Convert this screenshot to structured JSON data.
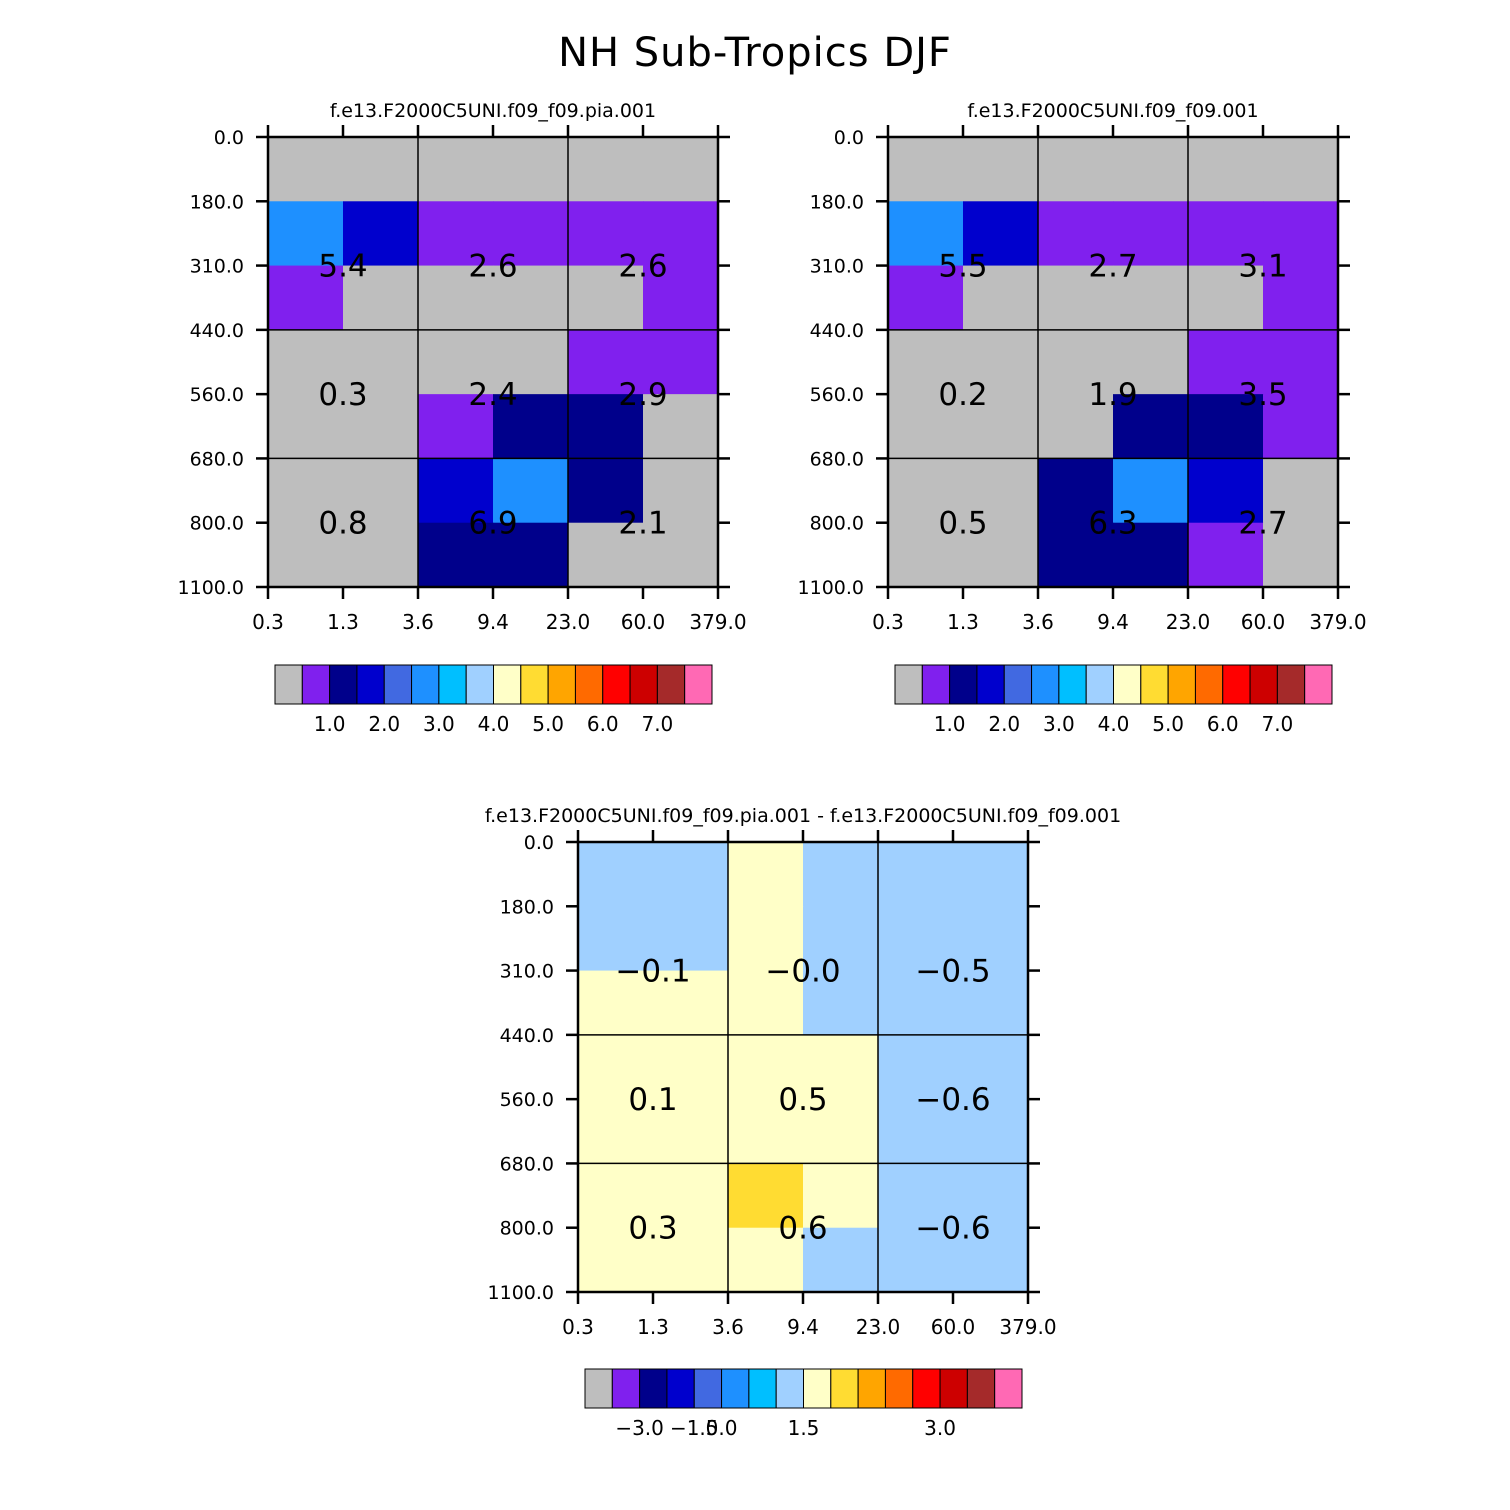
{
  "page_title": "NH Sub-Tropics DJF",
  "chart_data": [
    {
      "type": "heatmap",
      "title": "f.e13.F2000C5UNI.f09_f09.pia.001",
      "x_tick_labels": [
        "0.3",
        "1.3",
        "3.6",
        "9.4",
        "23.0",
        "60.0",
        "379.0"
      ],
      "y_tick_labels": [
        "0.0",
        "180.0",
        "310.0",
        "440.0",
        "560.0",
        "680.0",
        "800.0",
        "1100.0"
      ],
      "cell_colors": [
        [
          "gray",
          "gray",
          "gray",
          "gray",
          "gray",
          "gray"
        ],
        [
          "blue3",
          "navy2",
          "violet",
          "violet",
          "violet",
          "violet"
        ],
        [
          "violet",
          "gray",
          "gray",
          "gray",
          "gray",
          "violet"
        ],
        [
          "gray",
          "gray",
          "gray",
          "gray",
          "violet",
          "violet"
        ],
        [
          "gray",
          "gray",
          "violet",
          "navy",
          "navy",
          "gray"
        ],
        [
          "gray",
          "gray",
          "navy2",
          "blue3",
          "navy",
          "gray"
        ],
        [
          "gray",
          "gray",
          "navy",
          "navy",
          "gray",
          "gray"
        ]
      ],
      "annotations": [
        [
          "5.4",
          "2.6",
          "2.6"
        ],
        [
          "0.3",
          "2.4",
          "2.9"
        ],
        [
          "0.8",
          "6.9",
          "2.1"
        ]
      ],
      "colorbar": {
        "colors": [
          "#bebebe",
          "#8020ee",
          "#00008b",
          "#0000cd",
          "#4169e1",
          "#1e90ff",
          "#00bfff",
          "#a0d0ff",
          "#ffffc8",
          "#ffdc32",
          "#ffa500",
          "#ff6a00",
          "#ff0000",
          "#cd0000",
          "#a52a2a",
          "#ff69b4"
        ],
        "labels": [
          "1.0",
          "2.0",
          "3.0",
          "4.0",
          "5.0",
          "6.0",
          "7.0"
        ],
        "label_positions": [
          2,
          4,
          6,
          8,
          10,
          12,
          14
        ]
      }
    },
    {
      "type": "heatmap",
      "title": "f.e13.F2000C5UNI.f09_f09.001",
      "x_tick_labels": [
        "0.3",
        "1.3",
        "3.6",
        "9.4",
        "23.0",
        "60.0",
        "379.0"
      ],
      "y_tick_labels": [
        "0.0",
        "180.0",
        "310.0",
        "440.0",
        "560.0",
        "680.0",
        "800.0",
        "1100.0"
      ],
      "cell_colors": [
        [
          "gray",
          "gray",
          "gray",
          "gray",
          "gray",
          "gray"
        ],
        [
          "blue3",
          "navy2",
          "violet",
          "violet",
          "violet",
          "violet"
        ],
        [
          "violet",
          "gray",
          "gray",
          "gray",
          "gray",
          "violet"
        ],
        [
          "gray",
          "gray",
          "gray",
          "gray",
          "violet",
          "violet"
        ],
        [
          "gray",
          "gray",
          "gray",
          "navy",
          "navy",
          "violet"
        ],
        [
          "gray",
          "gray",
          "navy",
          "blue3",
          "navy2",
          "gray"
        ],
        [
          "gray",
          "gray",
          "navy",
          "navy",
          "violet",
          "gray"
        ]
      ],
      "annotations": [
        [
          "5.5",
          "2.7",
          "3.1"
        ],
        [
          "0.2",
          "1.9",
          "3.5"
        ],
        [
          "0.5",
          "6.3",
          "2.7"
        ]
      ],
      "colorbar": {
        "colors": [
          "#bebebe",
          "#8020ee",
          "#00008b",
          "#0000cd",
          "#4169e1",
          "#1e90ff",
          "#00bfff",
          "#a0d0ff",
          "#ffffc8",
          "#ffdc32",
          "#ffa500",
          "#ff6a00",
          "#ff0000",
          "#cd0000",
          "#a52a2a",
          "#ff69b4"
        ],
        "labels": [
          "1.0",
          "2.0",
          "3.0",
          "4.0",
          "5.0",
          "6.0",
          "7.0"
        ],
        "label_positions": [
          2,
          4,
          6,
          8,
          10,
          12,
          14
        ]
      }
    },
    {
      "type": "heatmap",
      "title": "f.e13.F2000C5UNI.f09_f09.pia.001 - f.e13.F2000C5UNI.f09_f09.001",
      "x_tick_labels": [
        "0.3",
        "1.3",
        "3.6",
        "9.4",
        "23.0",
        "60.0",
        "379.0"
      ],
      "y_tick_labels": [
        "0.0",
        "180.0",
        "310.0",
        "440.0",
        "560.0",
        "680.0",
        "800.0",
        "1100.0"
      ],
      "cell_colors": [
        [
          "lblue",
          "lblue",
          "cream",
          "lblue",
          "lblue",
          "lblue"
        ],
        [
          "lblue",
          "lblue",
          "cream",
          "lblue",
          "lblue",
          "lblue"
        ],
        [
          "cream",
          "cream",
          "cream",
          "lblue",
          "lblue",
          "lblue"
        ],
        [
          "cream",
          "cream",
          "cream",
          "cream",
          "lblue",
          "lblue"
        ],
        [
          "cream",
          "cream",
          "cream",
          "cream",
          "lblue",
          "lblue"
        ],
        [
          "cream",
          "cream",
          "gold",
          "cream",
          "lblue",
          "lblue"
        ],
        [
          "cream",
          "cream",
          "cream",
          "lblue",
          "lblue",
          "lblue"
        ]
      ],
      "annotations": [
        [
          "-0.1",
          "-0.0",
          "-0.5"
        ],
        [
          "0.1",
          "0.5",
          "-0.6"
        ],
        [
          "0.3",
          "0.6",
          "-0.6"
        ]
      ],
      "colorbar": {
        "colors": [
          "#bebebe",
          "#8020ee",
          "#00008b",
          "#0000cd",
          "#4169e1",
          "#1e90ff",
          "#00bfff",
          "#a0d0ff",
          "#ffffc8",
          "#ffdc32",
          "#ffa500",
          "#ff6a00",
          "#ff0000",
          "#cd0000",
          "#a52a2a",
          "#ff69b4"
        ],
        "labels": [
          "-3.0",
          "-1.5",
          "0.0",
          "1.5",
          "3.0"
        ],
        "label_positions": [
          2,
          4,
          5,
          8,
          13
        ]
      }
    }
  ],
  "palette": {
    "gray": "#bebebe",
    "violet": "#8020ee",
    "navy": "#00008b",
    "navy2": "#0000cd",
    "blue3": "#1e90ff",
    "lblue": "#a0d0ff",
    "cream": "#ffffc8",
    "gold": "#ffdc32"
  }
}
